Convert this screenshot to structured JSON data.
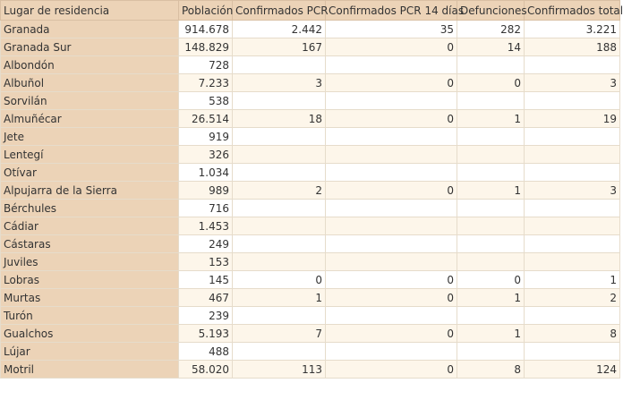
{
  "headers": [
    "Lugar de residencia",
    "Población",
    "Confirmados PCR",
    "Confirmados PCR 14 días",
    "Defunciones",
    "Confirmados total"
  ],
  "rows": [
    {
      "name": "Granada",
      "level": 0,
      "poblacion": "914.678",
      "pcr": "2.442",
      "pcr14": "35",
      "def": "282",
      "total": "3.221"
    },
    {
      "name": "Granada Sur",
      "level": 1,
      "poblacion": "148.829",
      "pcr": "167",
      "pcr14": "0",
      "def": "14",
      "total": "188"
    },
    {
      "name": "Albondón",
      "level": 2,
      "poblacion": "728",
      "pcr": "",
      "pcr14": "",
      "def": "",
      "total": ""
    },
    {
      "name": "Albuñol",
      "level": 2,
      "poblacion": "7.233",
      "pcr": "3",
      "pcr14": "0",
      "def": "0",
      "total": "3"
    },
    {
      "name": "Sorvilán",
      "level": 2,
      "poblacion": "538",
      "pcr": "",
      "pcr14": "",
      "def": "",
      "total": ""
    },
    {
      "name": "Almuñécar",
      "level": 2,
      "poblacion": "26.514",
      "pcr": "18",
      "pcr14": "0",
      "def": "1",
      "total": "19"
    },
    {
      "name": "Jete",
      "level": 2,
      "poblacion": "919",
      "pcr": "",
      "pcr14": "",
      "def": "",
      "total": ""
    },
    {
      "name": "Lentegí",
      "level": 2,
      "poblacion": "326",
      "pcr": "",
      "pcr14": "",
      "def": "",
      "total": ""
    },
    {
      "name": "Otívar",
      "level": 2,
      "poblacion": "1.034",
      "pcr": "",
      "pcr14": "",
      "def": "",
      "total": ""
    },
    {
      "name": "Alpujarra de la Sierra",
      "level": 2,
      "poblacion": "989",
      "pcr": "2",
      "pcr14": "0",
      "def": "1",
      "total": "3"
    },
    {
      "name": "Bérchules",
      "level": 2,
      "poblacion": "716",
      "pcr": "",
      "pcr14": "",
      "def": "",
      "total": ""
    },
    {
      "name": "Cádiar",
      "level": 2,
      "poblacion": "1.453",
      "pcr": "",
      "pcr14": "",
      "def": "",
      "total": ""
    },
    {
      "name": "Cástaras",
      "level": 2,
      "poblacion": "249",
      "pcr": "",
      "pcr14": "",
      "def": "",
      "total": ""
    },
    {
      "name": "Juviles",
      "level": 2,
      "poblacion": "153",
      "pcr": "",
      "pcr14": "",
      "def": "",
      "total": ""
    },
    {
      "name": "Lobras",
      "level": 2,
      "poblacion": "145",
      "pcr": "0",
      "pcr14": "0",
      "def": "0",
      "total": "1"
    },
    {
      "name": "Murtas",
      "level": 2,
      "poblacion": "467",
      "pcr": "1",
      "pcr14": "0",
      "def": "1",
      "total": "2"
    },
    {
      "name": "Turón",
      "level": 2,
      "poblacion": "239",
      "pcr": "",
      "pcr14": "",
      "def": "",
      "total": ""
    },
    {
      "name": "Gualchos",
      "level": 2,
      "poblacion": "5.193",
      "pcr": "7",
      "pcr14": "0",
      "def": "1",
      "total": "8"
    },
    {
      "name": "Lújar",
      "level": 2,
      "poblacion": "488",
      "pcr": "",
      "pcr14": "",
      "def": "",
      "total": ""
    },
    {
      "name": "Motril",
      "level": 2,
      "poblacion": "58.020",
      "pcr": "113",
      "pcr14": "0",
      "def": "8",
      "total": "124"
    }
  ]
}
